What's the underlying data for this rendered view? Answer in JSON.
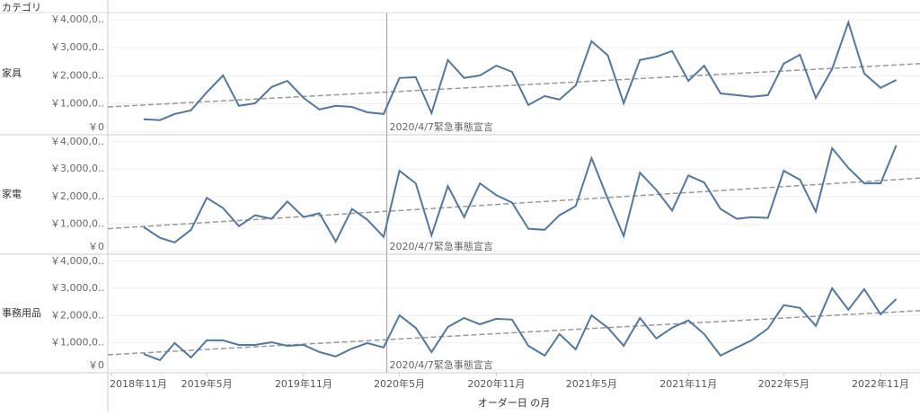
{
  "column_header": "カテゴリ",
  "x_axis": {
    "title": "オーダー日 の月",
    "xlim": [
      "2018-10-25",
      "2023-01-15"
    ],
    "xticks": [
      {
        "value": "2018-11",
        "label": "2018年11月"
      },
      {
        "value": "2019-05",
        "label": "2019年5月"
      },
      {
        "value": "2019-11",
        "label": "2019年11月"
      },
      {
        "value": "2020-05",
        "label": "2020年5月"
      },
      {
        "value": "2020-11",
        "label": "2020年11月"
      },
      {
        "value": "2021-05",
        "label": "2021年5月"
      },
      {
        "value": "2021-11",
        "label": "2021年11月"
      },
      {
        "value": "2022-05",
        "label": "2022年5月"
      },
      {
        "value": "2022-11",
        "label": "2022年11月"
      }
    ]
  },
  "reference_line": {
    "x": "2020-04-07",
    "label": "2020/4/7緊急事態宣言"
  },
  "chart_data": [
    {
      "type": "line",
      "category": "家具",
      "color": "#4e79a7",
      "grid": true,
      "x": [
        "2019-01",
        "2019-02",
        "2019-03",
        "2019-04",
        "2019-05",
        "2019-06",
        "2019-07",
        "2019-08",
        "2019-09",
        "2019-10",
        "2019-11",
        "2019-12",
        "2020-01",
        "2020-02",
        "2020-03",
        "2020-04",
        "2020-05",
        "2020-06",
        "2020-07",
        "2020-08",
        "2020-09",
        "2020-10",
        "2020-11",
        "2020-12",
        "2021-01",
        "2021-02",
        "2021-03",
        "2021-04",
        "2021-05",
        "2021-06",
        "2021-07",
        "2021-08",
        "2021-09",
        "2021-10",
        "2021-11",
        "2021-12",
        "2022-01",
        "2022-02",
        "2022-03",
        "2022-04",
        "2022-05",
        "2022-06",
        "2022-07",
        "2022-08",
        "2022-09",
        "2022-10",
        "2022-11",
        "2022-12"
      ],
      "values": [
        450000,
        420000,
        640000,
        770000,
        1410000,
        2010000,
        930000,
        1020000,
        1600000,
        1820000,
        1210000,
        800000,
        930000,
        890000,
        700000,
        640000,
        1920000,
        1950000,
        670000,
        2560000,
        1920000,
        2010000,
        2360000,
        2140000,
        960000,
        1280000,
        1150000,
        1660000,
        3230000,
        2720000,
        1020000,
        2560000,
        2680000,
        2880000,
        1820000,
        2360000,
        1370000,
        1310000,
        1250000,
        1310000,
        2430000,
        2750000,
        1210000,
        2240000,
        3900000,
        2080000,
        1570000,
        1850000
      ],
      "ylim": [
        -100000,
        4250000
      ],
      "yticks": [
        {
          "value": 0,
          "label": "￥0"
        },
        {
          "value": 1000000,
          "label": "￥1,000,0.."
        },
        {
          "value": 2000000,
          "label": "￥2,000,0.."
        },
        {
          "value": 3000000,
          "label": "￥3,000,0.."
        },
        {
          "value": 4000000,
          "label": "￥4,000,0.."
        }
      ],
      "trend_line": {
        "x": [
          "2018-10-25",
          "2023-01-15"
        ],
        "values": [
          890000,
          2430000
        ]
      }
    },
    {
      "type": "line",
      "category": "家電",
      "color": "#4e79a7",
      "grid": true,
      "x": [
        "2019-01",
        "2019-02",
        "2019-03",
        "2019-04",
        "2019-05",
        "2019-06",
        "2019-07",
        "2019-08",
        "2019-09",
        "2019-10",
        "2019-11",
        "2019-12",
        "2020-01",
        "2020-02",
        "2020-03",
        "2020-04",
        "2020-05",
        "2020-06",
        "2020-07",
        "2020-08",
        "2020-09",
        "2020-10",
        "2020-11",
        "2020-12",
        "2021-01",
        "2021-02",
        "2021-03",
        "2021-04",
        "2021-05",
        "2021-06",
        "2021-07",
        "2021-08",
        "2021-09",
        "2021-10",
        "2021-11",
        "2021-12",
        "2022-01",
        "2022-02",
        "2022-03",
        "2022-04",
        "2022-05",
        "2022-06",
        "2022-07",
        "2022-08",
        "2022-09",
        "2022-10",
        "2022-11",
        "2022-12"
      ],
      "values": [
        890000,
        500000,
        330000,
        790000,
        1950000,
        1580000,
        920000,
        1320000,
        1190000,
        1820000,
        1250000,
        1390000,
        360000,
        1550000,
        1160000,
        530000,
        2940000,
        2480000,
        590000,
        2380000,
        1250000,
        2480000,
        2050000,
        1780000,
        830000,
        790000,
        1320000,
        1650000,
        3400000,
        1910000,
        560000,
        2870000,
        2240000,
        1490000,
        2770000,
        2510000,
        1550000,
        1190000,
        1250000,
        1220000,
        2940000,
        2610000,
        1450000,
        3760000,
        3040000,
        2480000,
        2480000,
        3860000
      ],
      "ylim": [
        -100000,
        4250000
      ],
      "yticks": [
        {
          "value": 0,
          "label": "￥0"
        },
        {
          "value": 1000000,
          "label": "￥1,000,0.."
        },
        {
          "value": 2000000,
          "label": "￥2,000,0.."
        },
        {
          "value": 3000000,
          "label": "￥3,000,0.."
        },
        {
          "value": 4000000,
          "label": "￥4,000,0.."
        }
      ],
      "trend_line": {
        "x": [
          "2018-10-25",
          "2023-01-15"
        ],
        "values": [
          830000,
          2670000
        ]
      }
    },
    {
      "type": "line",
      "category": "事務用品",
      "color": "#4e79a7",
      "grid": true,
      "x": [
        "2019-01",
        "2019-02",
        "2019-03",
        "2019-04",
        "2019-05",
        "2019-06",
        "2019-07",
        "2019-08",
        "2019-09",
        "2019-10",
        "2019-11",
        "2019-12",
        "2020-01",
        "2020-02",
        "2020-03",
        "2020-04",
        "2020-05",
        "2020-06",
        "2020-07",
        "2020-08",
        "2020-09",
        "2020-10",
        "2020-11",
        "2020-12",
        "2021-01",
        "2021-02",
        "2021-03",
        "2021-04",
        "2021-05",
        "2021-06",
        "2021-07",
        "2021-08",
        "2021-09",
        "2021-10",
        "2021-11",
        "2021-12",
        "2022-01",
        "2022-02",
        "2022-03",
        "2022-04",
        "2022-05",
        "2022-06",
        "2022-07",
        "2022-08",
        "2022-09",
        "2022-10",
        "2022-11",
        "2022-12"
      ],
      "values": [
        590000,
        360000,
        990000,
        460000,
        1090000,
        1090000,
        920000,
        920000,
        1020000,
        890000,
        920000,
        660000,
        500000,
        790000,
        990000,
        830000,
        2010000,
        1550000,
        660000,
        1580000,
        1910000,
        1680000,
        1880000,
        1850000,
        890000,
        530000,
        1320000,
        760000,
        2010000,
        1550000,
        890000,
        1910000,
        1160000,
        1550000,
        1820000,
        1320000,
        530000,
        830000,
        1090000,
        1520000,
        2380000,
        2280000,
        1620000,
        3000000,
        2210000,
        2970000,
        2050000,
        2610000
      ],
      "ylim": [
        -100000,
        4250000
      ],
      "yticks": [
        {
          "value": 0,
          "label": "￥0"
        },
        {
          "value": 1000000,
          "label": "￥1,000,0.."
        },
        {
          "value": 2000000,
          "label": "￥2,000,0.."
        },
        {
          "value": 3000000,
          "label": "￥3,000,0.."
        },
        {
          "value": 4000000,
          "label": "￥4,000,0.."
        }
      ],
      "trend_line": {
        "x": [
          "2018-10-25",
          "2023-01-15"
        ],
        "values": [
          560000,
          2180000
        ]
      }
    }
  ]
}
